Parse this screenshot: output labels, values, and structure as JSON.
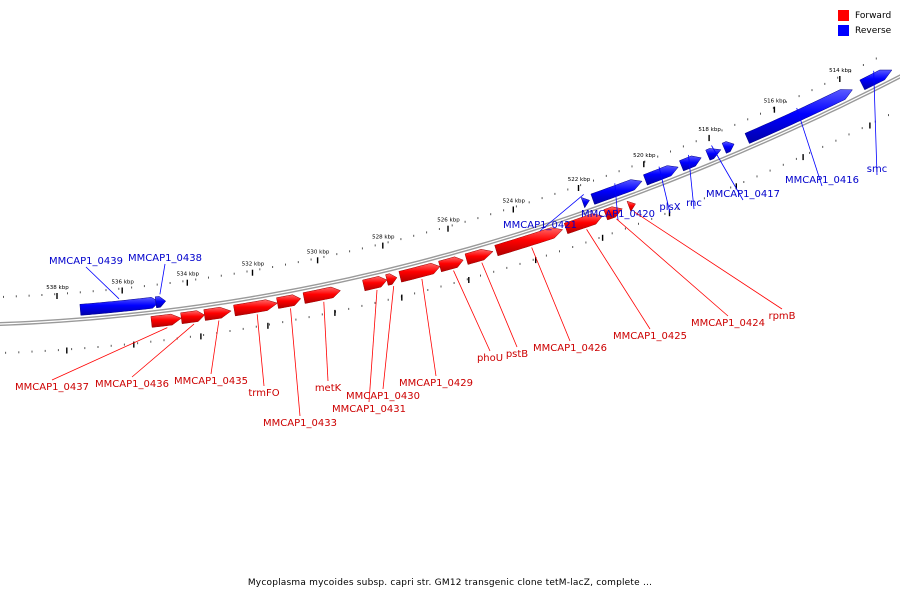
{
  "legend": {
    "forward_label": "Forward",
    "reverse_label": "Reverse",
    "forward_color": "#ff0000",
    "reverse_color": "#0000ff"
  },
  "caption": "Mycoplasma mycoides subsp. capri str. GM12 transgenic clone tetM-lacZ, complete ...",
  "ticks": [
    {
      "label": "538 kbp",
      "kbp": 538
    },
    {
      "label": "536 kbp",
      "kbp": 536
    },
    {
      "label": "534 kbp",
      "kbp": 534
    },
    {
      "label": "532 kbp",
      "kbp": 532
    },
    {
      "label": "530 kbp",
      "kbp": 530
    },
    {
      "label": "528 kbp",
      "kbp": 528
    },
    {
      "label": "526 kbp",
      "kbp": 526
    },
    {
      "label": "524 kbp",
      "kbp": 524
    },
    {
      "label": "522 kbp",
      "kbp": 522
    },
    {
      "label": "520 kbp",
      "kbp": 520
    },
    {
      "label": "518 kbp",
      "kbp": 518
    },
    {
      "label": "516 kbp",
      "kbp": 516
    },
    {
      "label": "514 kbp",
      "kbp": 514
    }
  ],
  "genes": {
    "reverse": [
      {
        "name": "MMCAP1_0439",
        "start": 537.3,
        "end": 534.9
      },
      {
        "name": "MMCAP1_0438",
        "start": 535.0,
        "end": 534.7
      },
      {
        "name": "MMCAP1_0421",
        "start": 522.0,
        "end": 521.8
      },
      {
        "name": "MMCAP1_0420",
        "start": 521.7,
        "end": 520.2
      },
      {
        "name": "plsX",
        "start": 520.1,
        "end": 519.1
      },
      {
        "name": "rnc",
        "start": 519.0,
        "end": 518.4
      },
      {
        "name": "MMCAP1_0417",
        "start": 518.2,
        "end": 517.8
      },
      {
        "name": "",
        "start": 517.7,
        "end": 517.4
      },
      {
        "name": "MMCAP1_0416",
        "start": 517.0,
        "end": 513.8
      },
      {
        "name": "smc",
        "start": 513.5,
        "end": 512.6
      }
    ],
    "forward": [
      {
        "name": "MMCAP1_0437",
        "start": 535.2,
        "end": 534.3
      },
      {
        "name": "MMCAP1_0436",
        "start": 534.3,
        "end": 533.6
      },
      {
        "name": "MMCAP1_0435",
        "start": 533.6,
        "end": 532.8
      },
      {
        "name": "trmFO",
        "start": 532.7,
        "end": 531.4
      },
      {
        "name": "MMCAP1_0433",
        "start": 531.4,
        "end": 530.7
      },
      {
        "name": "metK",
        "start": 530.6,
        "end": 529.5
      },
      {
        "name": "MMCAP1_0431",
        "start": 528.8,
        "end": 528.1
      },
      {
        "name": "MMCAP1_0430",
        "start": 528.1,
        "end": 527.8
      },
      {
        "name": "MMCAP1_0429",
        "start": 527.7,
        "end": 526.5
      },
      {
        "name": "phoU",
        "start": 526.5,
        "end": 525.8
      },
      {
        "name": "pstB",
        "start": 525.7,
        "end": 524.9
      },
      {
        "name": "MMCAP1_0426",
        "start": 524.8,
        "end": 522.8
      },
      {
        "name": "MMCAP1_0425",
        "start": 522.7,
        "end": 521.6
      },
      {
        "name": "MMCAP1_0424",
        "start": 521.5,
        "end": 521.0
      },
      {
        "name": "rpmB",
        "start": 520.8,
        "end": 520.6
      }
    ]
  }
}
